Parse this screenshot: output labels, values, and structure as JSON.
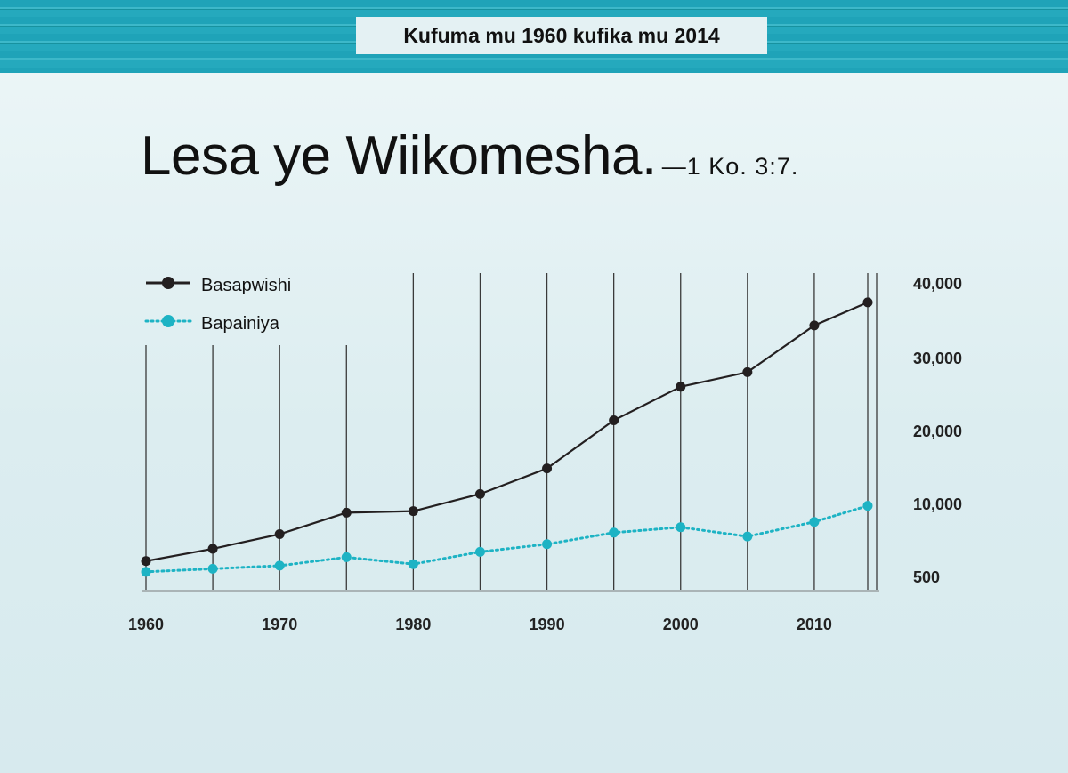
{
  "banner": {
    "label": "Kufuma mu 1960 kufika mu 2014"
  },
  "headline": {
    "main": "Lesa ye Wiikomesha.",
    "reference": "—1 Ko. 3:7."
  },
  "colors": {
    "series_dark": "#231f20",
    "series_teal": "#1db3c4",
    "banner": "#1fa3b8"
  },
  "chart_data": {
    "type": "line",
    "x": [
      1960,
      1965,
      1970,
      1975,
      1980,
      1985,
      1990,
      1995,
      2000,
      2005,
      2010,
      2014
    ],
    "xticks": [
      "1960",
      "1970",
      "1980",
      "1990",
      "2000",
      "2010"
    ],
    "xtick_values": [
      1960,
      1970,
      1980,
      1990,
      2000,
      2010
    ],
    "yticks": [
      "500",
      "10,000",
      "20,000",
      "30,000",
      "40,000"
    ],
    "ytick_values": [
      500,
      10000,
      20000,
      30000,
      40000
    ],
    "ylim": [
      500,
      40000
    ],
    "xlim": [
      1960,
      2014
    ],
    "grid": "vertical",
    "legend_position": "top-left",
    "series": [
      {
        "name": "Basapwishi",
        "style": "solid",
        "color": "#231f20",
        "values": [
          2500,
          4100,
          6000,
          8800,
          9000,
          11300,
          14800,
          21400,
          26000,
          28000,
          34300,
          37400
        ]
      },
      {
        "name": "Bapainiya",
        "style": "dotted",
        "color": "#1db3c4",
        "values": [
          1100,
          1500,
          1900,
          3000,
          2100,
          3700,
          4700,
          6200,
          6900,
          5700,
          7600,
          9700
        ]
      }
    ]
  }
}
